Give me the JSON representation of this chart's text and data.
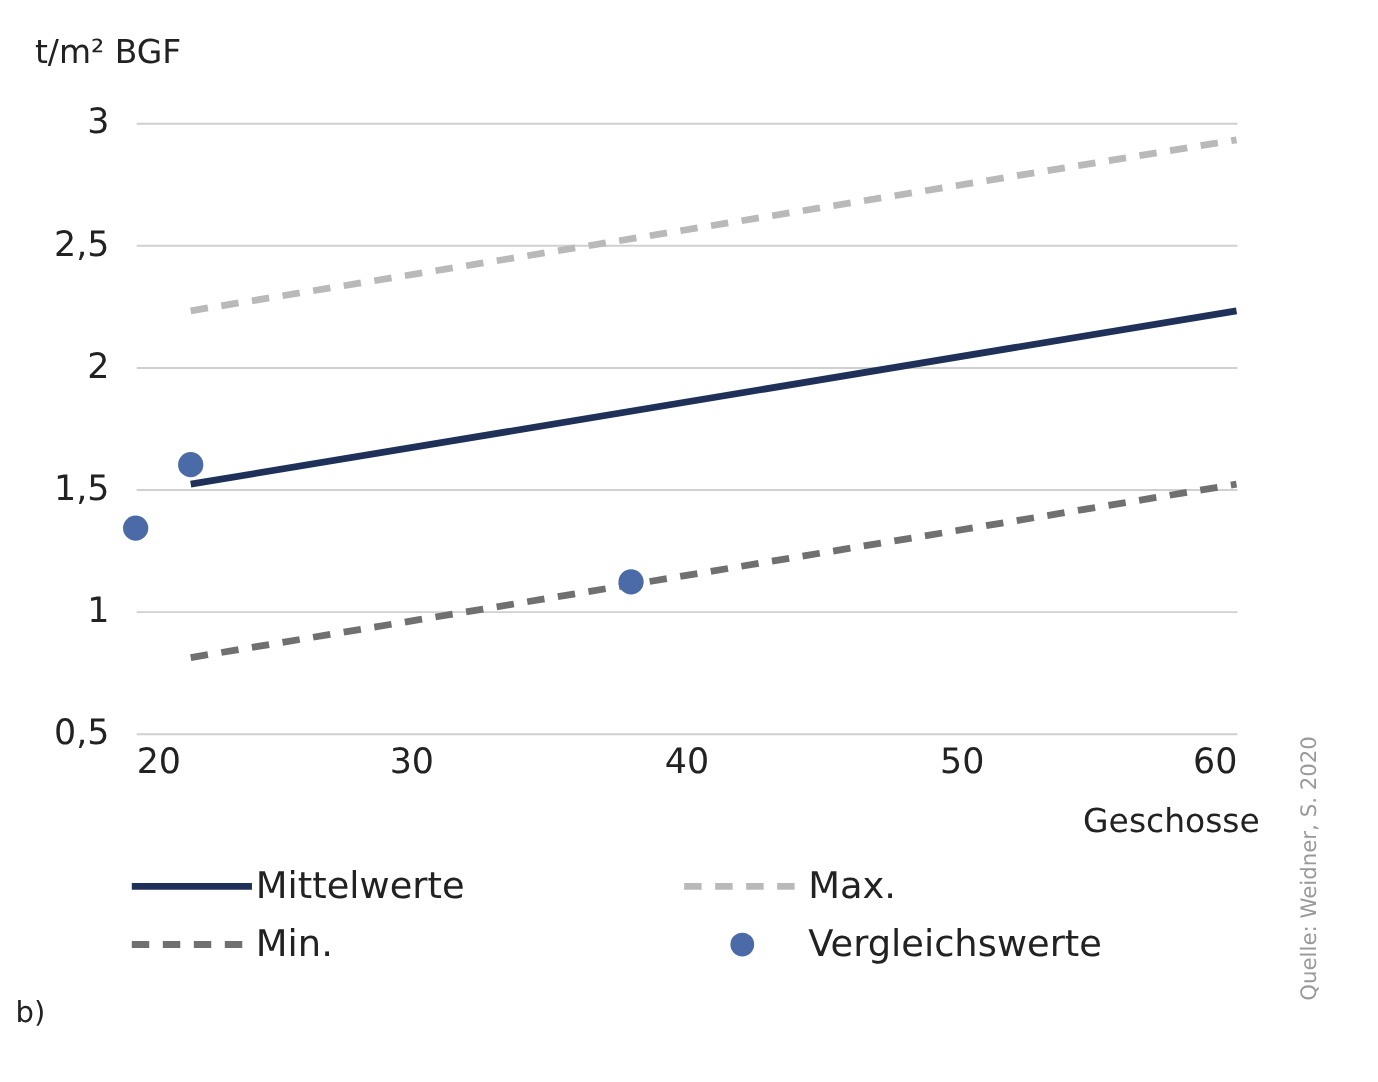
{
  "chart_data": {
    "type": "line",
    "xlabel": "Geschosse",
    "ylabel": "t/m² BGF",
    "xlim": [
      20,
      60
    ],
    "xticks": [
      20,
      30,
      40,
      50,
      60
    ],
    "ylim": [
      0.5,
      3
    ],
    "yticks": [
      {
        "value": 0.5,
        "label": "0,5"
      },
      1,
      {
        "value": 1.5,
        "label": "1,5"
      },
      2,
      {
        "value": 2.5,
        "label": "2,5"
      },
      3
    ],
    "grid": "y",
    "legend": "bottom",
    "series": [
      {
        "name": "Mittelwerte",
        "type": "line",
        "line_style": "solid",
        "color": "#1f3158",
        "x": [
          22,
          60
        ],
        "values": [
          1.52,
          2.23
        ]
      },
      {
        "name": "Max.",
        "type": "line",
        "line_style": "dashed",
        "color": "#b9b9b9",
        "x": [
          22,
          60
        ],
        "values": [
          2.23,
          2.93
        ]
      },
      {
        "name": "Min.",
        "type": "line",
        "line_style": "dashed",
        "color": "#707070",
        "x": [
          22,
          60
        ],
        "values": [
          0.81,
          1.52
        ]
      },
      {
        "name": "Vergleichswerte",
        "type": "scatter",
        "marker": "circle",
        "color": "#4a6aa8",
        "x": [
          20,
          22,
          38
        ],
        "values": [
          1.34,
          1.6,
          1.12
        ]
      }
    ],
    "annotations": [
      "b)",
      "Quelle: Weidner, S. 2020"
    ]
  }
}
